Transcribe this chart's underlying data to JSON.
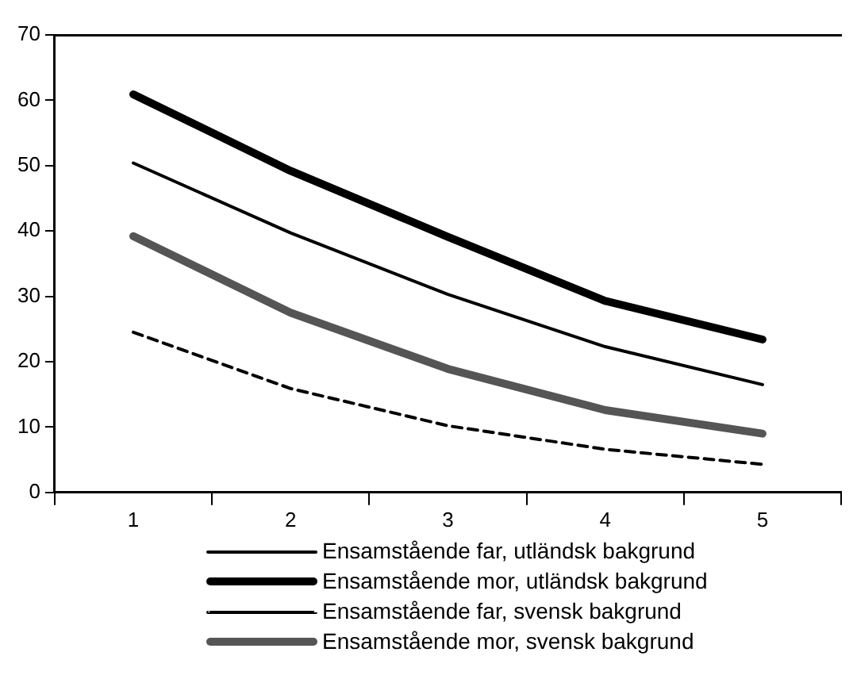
{
  "chart_data": {
    "type": "line",
    "categories": [
      "1",
      "2",
      "3",
      "4",
      "5"
    ],
    "series": [
      {
        "name": "Ensamstående far, utländsk bakgrund",
        "color": "#000000",
        "line_style": "solid",
        "values": [
          50.4,
          39.7,
          30.3,
          22.3,
          16.5
        ]
      },
      {
        "name": "Ensamstående mor, utländsk bakgrund",
        "color": "#000000",
        "line_style": "solid",
        "values": [
          60.9,
          49.2,
          39.1,
          29.3,
          23.4
        ]
      },
      {
        "name": "Ensamstående far, svensk bakgrund",
        "color": "#000000",
        "line_style": "dashed",
        "values": [
          24.5,
          15.9,
          10.2,
          6.6,
          4.3
        ]
      },
      {
        "name": "Ensamstående mor, svensk bakgrund",
        "color": "#555555",
        "line_style": "solid",
        "values": [
          39.2,
          27.5,
          18.9,
          12.6,
          9.0
        ]
      }
    ],
    "ylim": [
      0,
      70
    ],
    "yticks": [
      0,
      10,
      20,
      30,
      40,
      50,
      60,
      70
    ],
    "grid": false,
    "legend": "bottom",
    "marker": "none"
  }
}
